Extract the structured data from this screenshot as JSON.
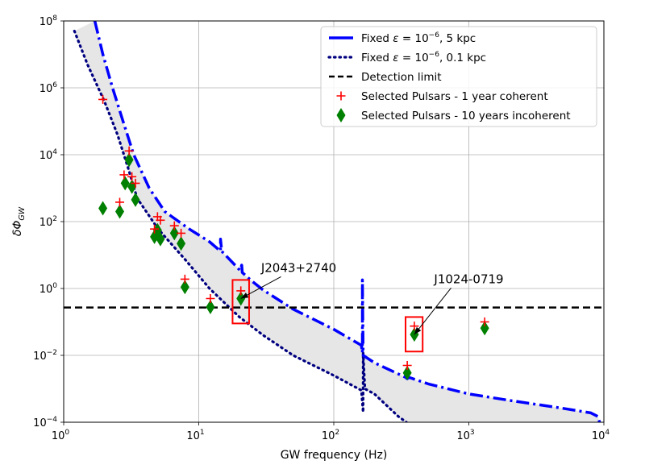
{
  "chart_data": {
    "type": "scatter",
    "xlabel": "GW frequency (Hz)",
    "ylabel": "δΦ",
    "ylabel_sub": "GW",
    "x_scale": "log",
    "y_scale": "log",
    "xlim": [
      1,
      10000
    ],
    "ylim": [
      0.0001,
      100000000
    ],
    "x_ticks": [
      {
        "value": 1,
        "base": "10",
        "exp": "0"
      },
      {
        "value": 10,
        "base": "10",
        "exp": "1"
      },
      {
        "value": 100,
        "base": "10",
        "exp": "2"
      },
      {
        "value": 1000,
        "base": "10",
        "exp": "3"
      },
      {
        "value": 10000,
        "base": "10",
        "exp": "4"
      }
    ],
    "y_ticks": [
      {
        "value": 0.0001,
        "base": "10",
        "exp": "−4"
      },
      {
        "value": 0.01,
        "base": "10",
        "exp": "−2"
      },
      {
        "value": 1,
        "base": "10",
        "exp": "0"
      },
      {
        "value": 100,
        "base": "10",
        "exp": "2"
      },
      {
        "value": 10000,
        "base": "10",
        "exp": "4"
      },
      {
        "value": 1000000,
        "base": "10",
        "exp": "6"
      },
      {
        "value": 100000000,
        "base": "10",
        "exp": "8"
      }
    ],
    "grid": true,
    "legend_position": "top-right",
    "colors": {
      "blue": "#0000ff",
      "navy": "#000080",
      "red": "#ff0000",
      "green": "#008000",
      "fill": "#e6e6e6",
      "grid": "#b0b0b0"
    },
    "legend": [
      {
        "pre": "Fixed ",
        "sym": "ε",
        "mid": " = 10",
        "sup": "−6",
        "post": ", 5 kpc",
        "style": "dashdot-blue"
      },
      {
        "pre": "Fixed ",
        "sym": "ε",
        "mid": " = 10",
        "sup": "−6",
        "post": ", 0.1 kpc",
        "style": "dotted-navy"
      },
      {
        "pre": "Detection limit",
        "sym": "",
        "mid": "",
        "sup": "",
        "post": "",
        "style": "dashed-black"
      },
      {
        "pre": "Selected Pulsars - 1 year coherent",
        "sym": "",
        "mid": "",
        "sup": "",
        "post": "",
        "style": "plus-red"
      },
      {
        "pre": "Selected Pulsars - 10 years incoherent",
        "sym": "",
        "mid": "",
        "sup": "",
        "post": "",
        "style": "diamond-green"
      }
    ],
    "detection_limit": 0.27,
    "series": [
      {
        "name": "Fixed ε = 10^−6, 5 kpc",
        "points": [
          [
            1.7,
            100000000
          ],
          [
            1.95,
            10000000
          ],
          [
            2.3,
            1000000
          ],
          [
            2.75,
            100000
          ],
          [
            3.3,
            10000
          ],
          [
            4.3,
            1000
          ],
          [
            5.6,
            200
          ],
          [
            8.5,
            60
          ],
          [
            12,
            25
          ],
          [
            14.5,
            13
          ],
          [
            14.5,
            30
          ],
          [
            14.8,
            13
          ],
          [
            20.2,
            3.5
          ],
          [
            20.8,
            5
          ],
          [
            21,
            3
          ],
          [
            25,
            1.6
          ],
          [
            30,
            0.9
          ],
          [
            50,
            0.24
          ],
          [
            100,
            0.06
          ],
          [
            160,
            0.02
          ],
          [
            163,
            0.012
          ],
          [
            163,
            1.8
          ],
          [
            165,
            0.01
          ],
          [
            200,
            0.006
          ],
          [
            340,
            0.0022
          ],
          [
            350,
            0.002
          ],
          [
            360,
            0.0022
          ],
          [
            500,
            0.0014
          ],
          [
            1000,
            0.0007
          ],
          [
            2000,
            0.00045
          ],
          [
            5000,
            0.00026
          ],
          [
            8000,
            0.00019
          ],
          [
            9000,
            0.00015
          ],
          [
            9300,
            0.0001
          ]
        ]
      },
      {
        "name": "Fixed ε = 10^−6, 0.1 kpc",
        "points": [
          [
            1.2,
            50000000
          ],
          [
            1.5,
            5000000
          ],
          [
            2,
            400000
          ],
          [
            2.5,
            40000
          ],
          [
            3,
            4000
          ],
          [
            3.5,
            500
          ],
          [
            5,
            60
          ],
          [
            8,
            7
          ],
          [
            12,
            1
          ],
          [
            20,
            0.14
          ],
          [
            30,
            0.04
          ],
          [
            50,
            0.01
          ],
          [
            100,
            0.0025
          ],
          [
            160,
            0.0009
          ],
          [
            165,
            0.0002
          ],
          [
            165,
            0.012
          ],
          [
            170,
            0.001
          ],
          [
            200,
            0.0007
          ],
          [
            300,
            0.00015
          ],
          [
            345,
            0.0001
          ]
        ]
      }
    ],
    "pulsars_1yr": [
      [
        1.95,
        450000
      ],
      [
        2.6,
        380
      ],
      [
        2.8,
        2500
      ],
      [
        3.05,
        13000
      ],
      [
        3.2,
        2200
      ],
      [
        3.4,
        1400
      ],
      [
        4.7,
        60
      ],
      [
        4.95,
        140
      ],
      [
        5.2,
        110
      ],
      [
        6.6,
        75
      ],
      [
        7.4,
        45
      ],
      [
        7.9,
        1.9
      ],
      [
        12.2,
        0.5
      ],
      [
        20.5,
        0.85
      ],
      [
        350,
        0.005
      ],
      [
        395,
        0.075
      ],
      [
        1310,
        0.1
      ]
    ],
    "pulsars_10yr": [
      [
        1.95,
        250
      ],
      [
        2.6,
        200
      ],
      [
        2.85,
        1400
      ],
      [
        3.05,
        7000
      ],
      [
        3.2,
        1100
      ],
      [
        3.4,
        450
      ],
      [
        4.7,
        35
      ],
      [
        4.95,
        55
      ],
      [
        5.2,
        30
      ],
      [
        6.6,
        45
      ],
      [
        7.4,
        22
      ],
      [
        7.9,
        1.1
      ],
      [
        12.2,
        0.28
      ],
      [
        20.5,
        0.5
      ],
      [
        350,
        0.003
      ],
      [
        395,
        0.042
      ],
      [
        1310,
        0.065
      ]
    ],
    "annotations": [
      {
        "label": "J2043+2740",
        "target": [
          20.5,
          0.5
        ],
        "text_at": [
          55,
          2.8
        ],
        "box_x": [
          17.8,
          23.6
        ],
        "box_y": [
          0.09,
          1.8
        ]
      },
      {
        "label": "J1024-0719",
        "target": [
          395,
          0.042
        ],
        "text_at": [
          1000,
          1.3
        ],
        "box_x": [
          340,
          455
        ],
        "box_y": [
          0.013,
          0.14
        ]
      }
    ]
  }
}
